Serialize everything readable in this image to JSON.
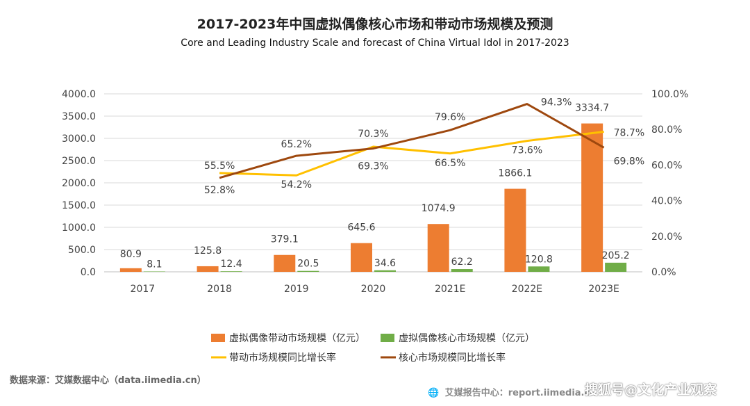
{
  "chart_data": {
    "type": "bar",
    "title": "2017-2023年中国虚拟偶像核心市场和带动市场规模及预测",
    "subtitle": "Core and Leading Industry Scale and forecast of China Virtual Idol in 2017-2023",
    "categories": [
      "2017",
      "2018",
      "2019",
      "2020",
      "2021E",
      "2022E",
      "2023E"
    ],
    "series": [
      {
        "name": "虚拟偶像带动市场规模（亿元）",
        "kind": "bar",
        "axis": "left",
        "color": "#ED7D31",
        "values": [
          80.9,
          125.8,
          379.1,
          645.6,
          1074.9,
          1866.1,
          3334.7
        ],
        "labels": [
          "80.9",
          "125.8",
          "379.1",
          "645.6",
          "1074.9",
          "1866.1",
          "3334.7"
        ]
      },
      {
        "name": "虚拟偶像核心市场规模（亿元）",
        "kind": "bar",
        "axis": "left",
        "color": "#70AD47",
        "values": [
          8.1,
          12.4,
          20.5,
          34.6,
          62.2,
          120.8,
          205.2
        ],
        "labels": [
          "8.1",
          "12.4",
          "20.5",
          "34.6",
          "62.2",
          "120.8",
          "205.2"
        ]
      },
      {
        "name": "带动市场规模同比增长率",
        "kind": "line",
        "axis": "right",
        "color": "#FFC000",
        "values": [
          null,
          55.5,
          54.2,
          70.3,
          66.5,
          73.6,
          78.7
        ],
        "labels": [
          "",
          "55.5%",
          "54.2%",
          "70.3%",
          "66.5%",
          "73.6%",
          "78.7%"
        ]
      },
      {
        "name": "核心市场规模同比增长率",
        "kind": "line",
        "axis": "right",
        "color": "#9E480E",
        "values": [
          null,
          52.8,
          65.2,
          69.3,
          79.6,
          94.3,
          69.8
        ],
        "labels": [
          "",
          "52.8%",
          "65.2%",
          "69.3%",
          "79.6%",
          "94.3%",
          "69.8%"
        ]
      }
    ],
    "y_left": {
      "min": 0,
      "max": 4000,
      "ticks": [
        "0.0",
        "500.0",
        "1000.0",
        "1500.0",
        "2000.0",
        "2500.0",
        "3000.0",
        "3500.0",
        "4000.0"
      ]
    },
    "y_right": {
      "min": 0,
      "max": 100,
      "ticks": [
        "0.0%",
        "20.0%",
        "40.0%",
        "60.0%",
        "80.0%",
        "100.0%"
      ]
    },
    "grid": true,
    "legend_position": "bottom"
  },
  "footer": {
    "source": "数据来源：艾媒数据中心（data.iimedia.cn）",
    "report_icon": "globe-icon",
    "report": "艾媒报告中心：report.iimedia.cn",
    "watermark": "搜狐号@文化产业观察"
  }
}
